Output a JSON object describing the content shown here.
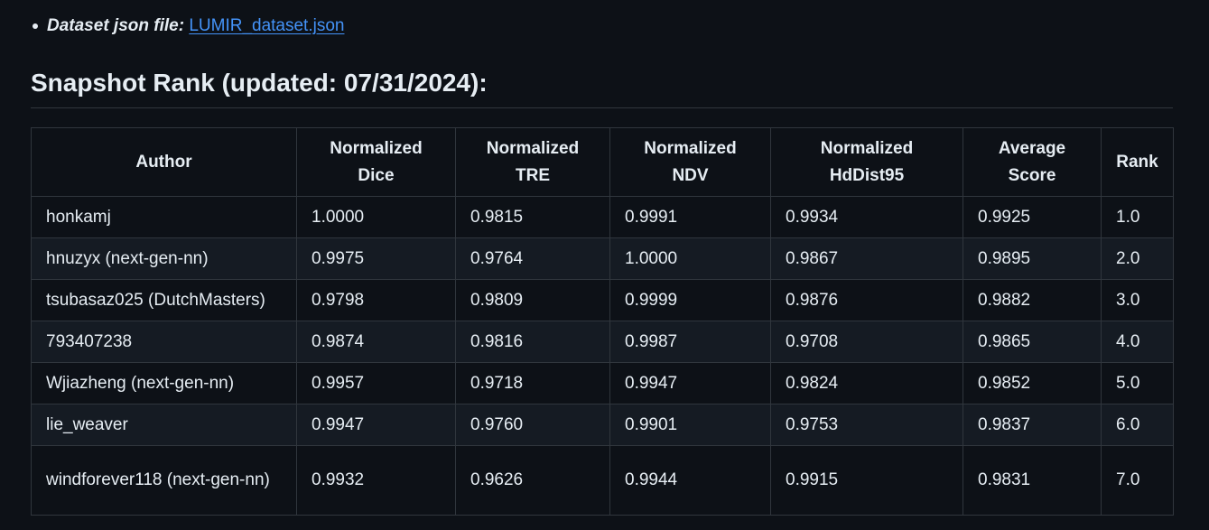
{
  "bullet": {
    "label": "Dataset json file:",
    "link_text": "LUMIR_dataset.json"
  },
  "section": {
    "title": "Snapshot Rank (updated: 07/31/2024):"
  },
  "table": {
    "headers": [
      "Author",
      "Normalized Dice",
      "Normalized TRE",
      "Normalized NDV",
      "Normalized HdDist95",
      "Average Score",
      "Rank"
    ],
    "rows": [
      [
        "honkamj",
        "1.0000",
        "0.9815",
        "0.9991",
        "0.9934",
        "0.9925",
        "1.0"
      ],
      [
        "hnuzyx (next-gen-nn)",
        "0.9975",
        "0.9764",
        "1.0000",
        "0.9867",
        "0.9895",
        "2.0"
      ],
      [
        "tsubasaz025 (DutchMasters)",
        "0.9798",
        "0.9809",
        "0.9999",
        "0.9876",
        "0.9882",
        "3.0"
      ],
      [
        "793407238",
        "0.9874",
        "0.9816",
        "0.9987",
        "0.9708",
        "0.9865",
        "4.0"
      ],
      [
        "Wjiazheng (next-gen-nn)",
        "0.9957",
        "0.9718",
        "0.9947",
        "0.9824",
        "0.9852",
        "5.0"
      ],
      [
        "lie_weaver",
        "0.9947",
        "0.9760",
        "0.9901",
        "0.9753",
        "0.9837",
        "6.0"
      ],
      [
        "windforever118 (next-gen-nn)",
        "0.9932",
        "0.9626",
        "0.9944",
        "0.9915",
        "0.9831",
        "7.0"
      ]
    ]
  }
}
